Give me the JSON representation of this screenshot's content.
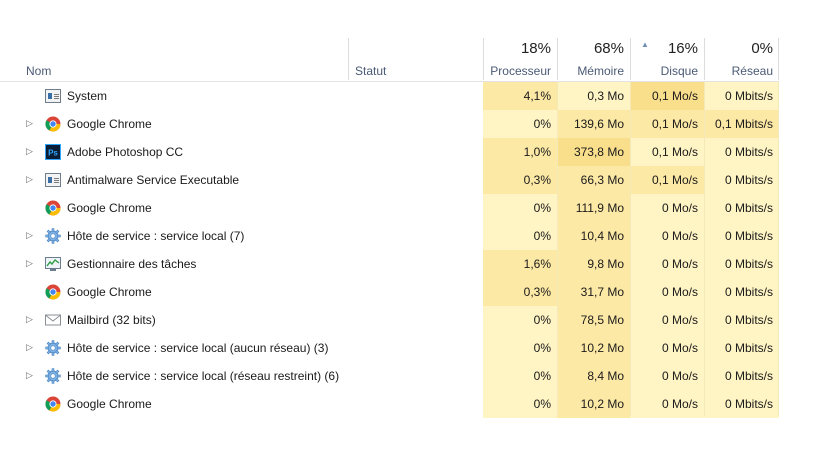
{
  "columns": {
    "name": {
      "label": "Nom"
    },
    "status": {
      "label": "Statut"
    },
    "cpu": {
      "percent": "18%",
      "label": "Processeur"
    },
    "memory": {
      "percent": "68%",
      "label": "Mémoire"
    },
    "disk": {
      "percent": "16%",
      "label": "Disque"
    },
    "network": {
      "percent": "0%",
      "label": "Réseau"
    }
  },
  "colors": {
    "heat_light": "#fff4c4",
    "heat_mid": "#fde9a6",
    "heat_strong": "#f9de8c",
    "header_label": "#4a5a75"
  },
  "rows": [
    {
      "name": "System",
      "icon": "system-icon",
      "expandable": false,
      "cpu": "4,1%",
      "memory": "0,3 Mo",
      "disk": "0,1 Mo/s",
      "network": "0 Mbits/s"
    },
    {
      "name": "Google Chrome",
      "icon": "chrome-icon",
      "expandable": true,
      "cpu": "0%",
      "memory": "139,6 Mo",
      "disk": "0,1 Mo/s",
      "network": "0,1 Mbits/s"
    },
    {
      "name": "Adobe Photoshop CC",
      "icon": "photoshop-icon",
      "expandable": true,
      "cpu": "1,0%",
      "memory": "373,8 Mo",
      "disk": "0,1 Mo/s",
      "network": "0 Mbits/s"
    },
    {
      "name": "Antimalware Service Executable",
      "icon": "system-icon",
      "expandable": true,
      "cpu": "0,3%",
      "memory": "66,3 Mo",
      "disk": "0,1 Mo/s",
      "network": "0 Mbits/s"
    },
    {
      "name": "Google Chrome",
      "icon": "chrome-icon",
      "expandable": false,
      "cpu": "0%",
      "memory": "111,9 Mo",
      "disk": "0 Mo/s",
      "network": "0 Mbits/s"
    },
    {
      "name": "Hôte de service : service local (7)",
      "icon": "gear-icon",
      "expandable": true,
      "cpu": "0%",
      "memory": "10,4 Mo",
      "disk": "0 Mo/s",
      "network": "0 Mbits/s"
    },
    {
      "name": "Gestionnaire des tâches",
      "icon": "task-manager-icon",
      "expandable": true,
      "cpu": "1,6%",
      "memory": "9,8 Mo",
      "disk": "0 Mo/s",
      "network": "0 Mbits/s"
    },
    {
      "name": "Google Chrome",
      "icon": "chrome-icon",
      "expandable": false,
      "cpu": "0,3%",
      "memory": "31,7 Mo",
      "disk": "0 Mo/s",
      "network": "0 Mbits/s"
    },
    {
      "name": "Mailbird (32 bits)",
      "icon": "mail-icon",
      "expandable": true,
      "cpu": "0%",
      "memory": "78,5 Mo",
      "disk": "0 Mo/s",
      "network": "0 Mbits/s"
    },
    {
      "name": "Hôte de service : service local (aucun réseau) (3)",
      "icon": "gear-icon",
      "expandable": true,
      "cpu": "0%",
      "memory": "10,2 Mo",
      "disk": "0 Mo/s",
      "network": "0 Mbits/s"
    },
    {
      "name": "Hôte de service : service local (réseau restreint) (6)",
      "icon": "gear-icon",
      "expandable": true,
      "cpu": "0%",
      "memory": "8,4 Mo",
      "disk": "0 Mo/s",
      "network": "0 Mbits/s"
    },
    {
      "name": "Google Chrome",
      "icon": "chrome-icon",
      "expandable": false,
      "cpu": "0%",
      "memory": "10,2 Mo",
      "disk": "0 Mo/s",
      "network": "0 Mbits/s"
    }
  ]
}
